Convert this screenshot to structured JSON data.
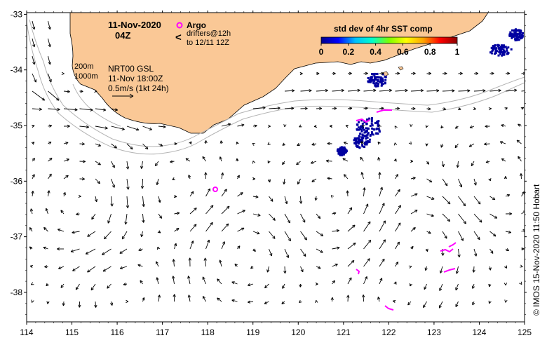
{
  "header": {
    "date": "11-Nov-2020",
    "time": "04Z"
  },
  "legend": {
    "argo_label": "Argo",
    "argo_color": "#ff00ff",
    "drifter_label_1": "drifters@12h",
    "drifter_label_2": "to 12/11 12Z",
    "drifter_symbol": "<",
    "depth_200": "200m",
    "depth_1000": "1000m",
    "product": "NRT00 GSL",
    "product_time": "11-Nov 18:00Z",
    "scale_text": "0.5m/s (1kt 24h)"
  },
  "colorbar": {
    "title": "std dev of 4hr SST comp",
    "ticks": [
      "0",
      "0.2",
      "0.4",
      "0.6",
      "0.8",
      "1"
    ],
    "colors": [
      "#00008b",
      "#0000ff",
      "#00bfff",
      "#00ffcc",
      "#7fff00",
      "#ffff00",
      "#ffa500",
      "#ff0000",
      "#8b0000"
    ]
  },
  "axes": {
    "lon_ticks": [
      "114",
      "115",
      "116",
      "117",
      "118",
      "119",
      "120",
      "121",
      "122",
      "123",
      "124",
      "125"
    ],
    "lat_ticks": [
      "-33",
      "-34",
      "-35",
      "-36",
      "-37",
      "-38"
    ],
    "lon_range": [
      114,
      125
    ],
    "lat_range": [
      -32.97,
      -38.53
    ]
  },
  "colors": {
    "land": "#fac896",
    "ocean": "#ffffff",
    "contour": "#b4b4b4",
    "arrows": "#000000",
    "sst_mask": "#0000a0"
  },
  "credit": "© IMOS 15-Nov-2020 11:50 Hobart"
}
